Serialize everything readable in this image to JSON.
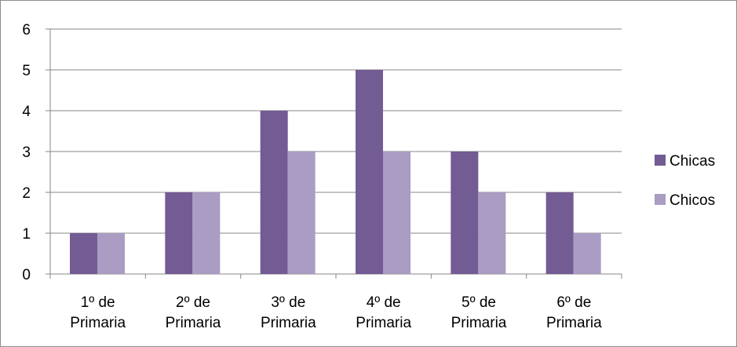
{
  "chart_data": {
    "type": "bar",
    "categories": [
      [
        "1º de",
        "Primaria"
      ],
      [
        "2º de",
        "Primaria"
      ],
      [
        "3º de",
        "Primaria"
      ],
      [
        "4º de",
        "Primaria"
      ],
      [
        "5º de",
        "Primaria"
      ],
      [
        "6º de",
        "Primaria"
      ]
    ],
    "series": [
      {
        "name": "Chicas",
        "values": [
          1,
          2,
          4,
          5,
          3,
          2
        ],
        "color": "#735b94"
      },
      {
        "name": "Chicos",
        "values": [
          1,
          2,
          3,
          3,
          2,
          1
        ],
        "color": "#aa9cc3"
      }
    ],
    "ylim": [
      0,
      6
    ],
    "yticks": [
      0,
      1,
      2,
      3,
      4,
      5,
      6
    ],
    "grid": true,
    "legend_position": "right",
    "title": "",
    "xlabel": "",
    "ylabel": ""
  }
}
